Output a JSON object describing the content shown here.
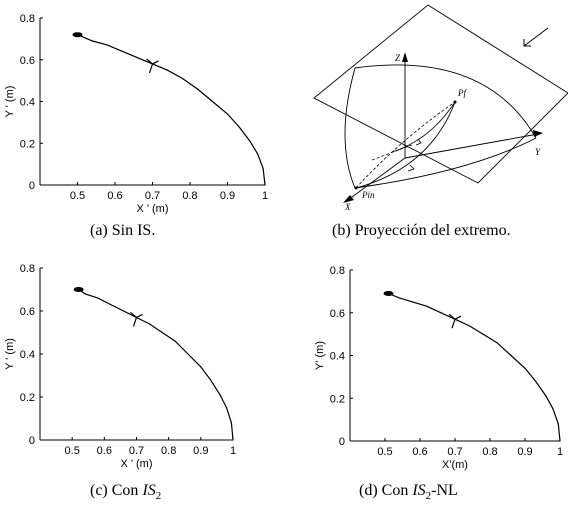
{
  "captions": {
    "a": "(a)  Sin IS.",
    "b": "(b)  Proyección del extremo.",
    "c_prefix": "(c)  Con ",
    "c_is": "IS",
    "c_sub": "2",
    "d_prefix": "(d)  Con ",
    "d_is": "IS",
    "d_sub": "2",
    "d_suffix": "-NL"
  },
  "diagram": {
    "labels": {
      "z": "Z",
      "y": "Y",
      "x": "X",
      "pf": "Pf",
      "pin": "Pin"
    }
  },
  "chart_data": [
    {
      "id": "a",
      "type": "line",
      "xlabel": "X ' (m)",
      "ylabel": "Y ' (m)",
      "xlim": [
        0.4,
        1.0
      ],
      "ylim": [
        0,
        0.8
      ],
      "xticks": [
        "0.5",
        "0.6",
        "0.7",
        "0.8",
        "0.9",
        "1"
      ],
      "yticks": [
        "0",
        "0.2",
        "0.4",
        "0.6",
        "0.8"
      ],
      "x": [
        1.0,
        0.995,
        0.98,
        0.96,
        0.93,
        0.9,
        0.86,
        0.82,
        0.78,
        0.74,
        0.7,
        0.66,
        0.62,
        0.58,
        0.54,
        0.5
      ],
      "y": [
        0.0,
        0.08,
        0.15,
        0.21,
        0.28,
        0.34,
        0.4,
        0.46,
        0.51,
        0.55,
        0.58,
        0.61,
        0.64,
        0.67,
        0.69,
        0.72
      ]
    },
    {
      "id": "c",
      "type": "line",
      "xlabel": "X ' (m)",
      "ylabel": "Y ' (m)",
      "xlim": [
        0.4,
        1.0
      ],
      "ylim": [
        0,
        0.8
      ],
      "xticks": [
        "0.5",
        "0.6",
        "0.7",
        "0.8",
        "0.9",
        "1"
      ],
      "yticks": [
        "0",
        "0.2",
        "0.4",
        "0.6",
        "0.8"
      ],
      "x": [
        1.0,
        0.995,
        0.98,
        0.96,
        0.93,
        0.9,
        0.86,
        0.82,
        0.78,
        0.74,
        0.7,
        0.66,
        0.62,
        0.58,
        0.54,
        0.52
      ],
      "y": [
        0.0,
        0.08,
        0.15,
        0.21,
        0.28,
        0.34,
        0.4,
        0.46,
        0.5,
        0.54,
        0.57,
        0.6,
        0.63,
        0.66,
        0.68,
        0.7
      ]
    },
    {
      "id": "d",
      "type": "line",
      "xlabel": "X'(m)",
      "ylabel": "Y' (m)",
      "xlim": [
        0.4,
        1.0
      ],
      "ylim": [
        0,
        0.8
      ],
      "xticks": [
        "0.5",
        "0.6",
        "0.7",
        "0.8",
        "0.9",
        "1"
      ],
      "yticks": [
        "0",
        "0.2",
        "0.4",
        "0.6",
        "0.8"
      ],
      "x": [
        1.0,
        0.995,
        0.98,
        0.96,
        0.93,
        0.9,
        0.86,
        0.82,
        0.78,
        0.74,
        0.7,
        0.66,
        0.62,
        0.58,
        0.54,
        0.51
      ],
      "y": [
        0.0,
        0.08,
        0.15,
        0.21,
        0.28,
        0.34,
        0.4,
        0.46,
        0.5,
        0.54,
        0.57,
        0.6,
        0.63,
        0.65,
        0.67,
        0.69
      ]
    }
  ]
}
